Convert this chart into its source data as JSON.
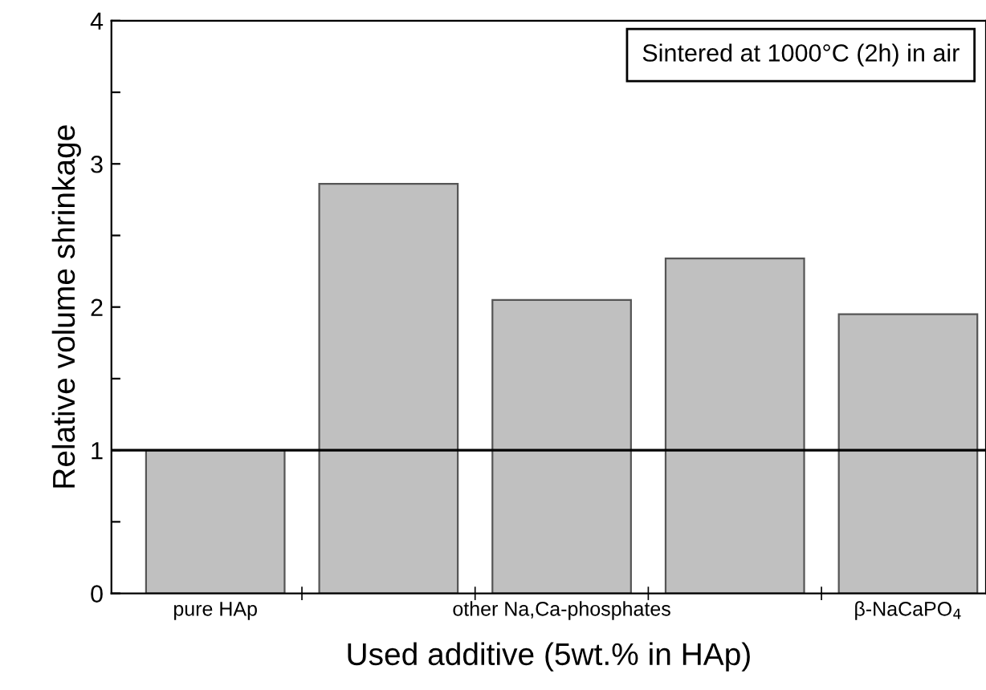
{
  "chart_data": {
    "type": "bar",
    "xlabel": "Used additive (5wt.% in HAp)",
    "ylabel": "Relative volume shrinkage",
    "categories": [
      "pure HAp",
      null,
      "other Na,Ca-phosphates",
      null,
      "β-NaCaPO$_{4}$"
    ],
    "values": [
      1.0,
      2.86,
      2.05,
      2.34,
      1.95
    ],
    "color": "#c0c0c0",
    "ylim": [
      0,
      4
    ],
    "yticks": [
      0,
      {
        "value": 0.5,
        "label": null
      },
      1,
      {
        "value": 1.5,
        "label": null
      },
      2,
      {
        "value": 2.5,
        "label": null
      },
      3,
      {
        "value": 3.5,
        "label": null
      },
      4
    ],
    "ref_lines": [
      {
        "axis": "y",
        "value": 1,
        "color": "#000000"
      }
    ],
    "annotations": [
      "Sintered at 1000°C (2h) in air"
    ],
    "grid": false,
    "legend": false
  }
}
